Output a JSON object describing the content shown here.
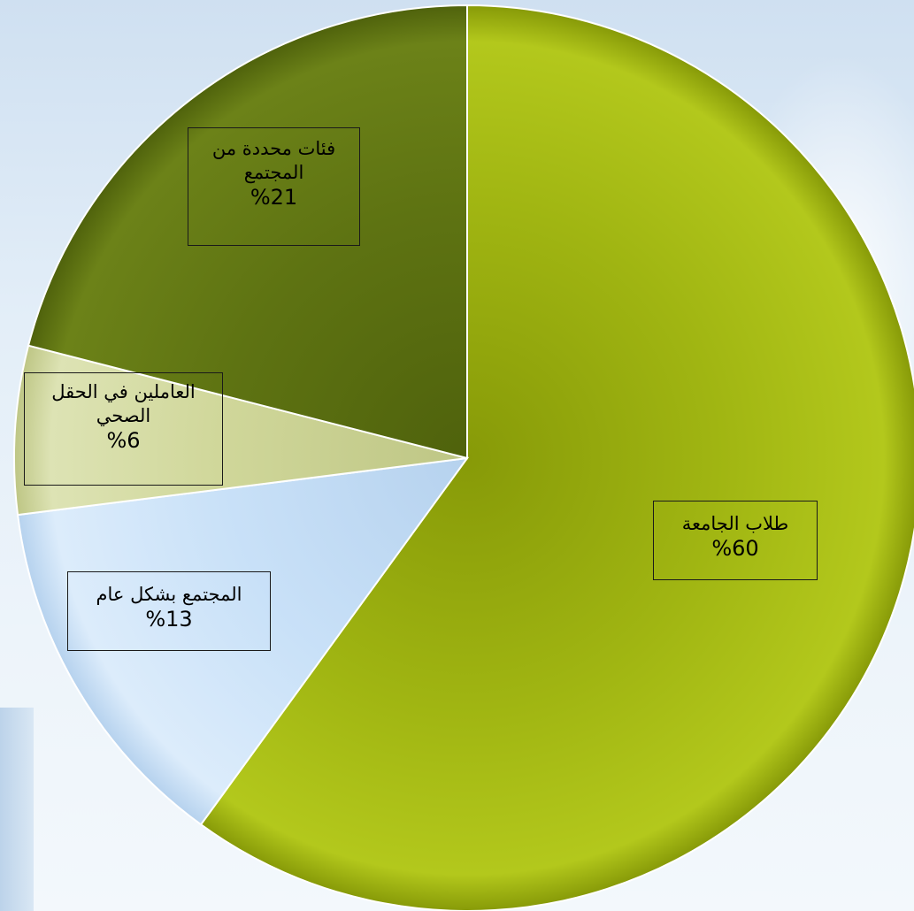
{
  "chart_data": {
    "type": "pie",
    "title": "",
    "slices": [
      {
        "label": "طلاب الجامعة",
        "value": 60,
        "value_label": "%60",
        "color": "#a0b512",
        "color_light": "#b3c81c",
        "color_dark": "#879a08"
      },
      {
        "label": "المجتمع بشكل عام",
        "value": 13,
        "value_label": "%13",
        "color": "#c9e1f8",
        "color_light": "#dcecfb",
        "color_dark": "#b6d2ee"
      },
      {
        "label": "العاملين في الحقل الصحي",
        "value": 6,
        "value_label": "%6",
        "color": "#d0d79a",
        "color_light": "#dde3b4",
        "color_dark": "#bec685"
      },
      {
        "label": "فئات محددة من المجتمع",
        "value": 21,
        "value_label": "%21",
        "color": "#5e7312",
        "color_light": "#6c8218",
        "color_dark": "#4f620c"
      }
    ],
    "start_angle_deg": 0,
    "direction": "clockwise"
  }
}
